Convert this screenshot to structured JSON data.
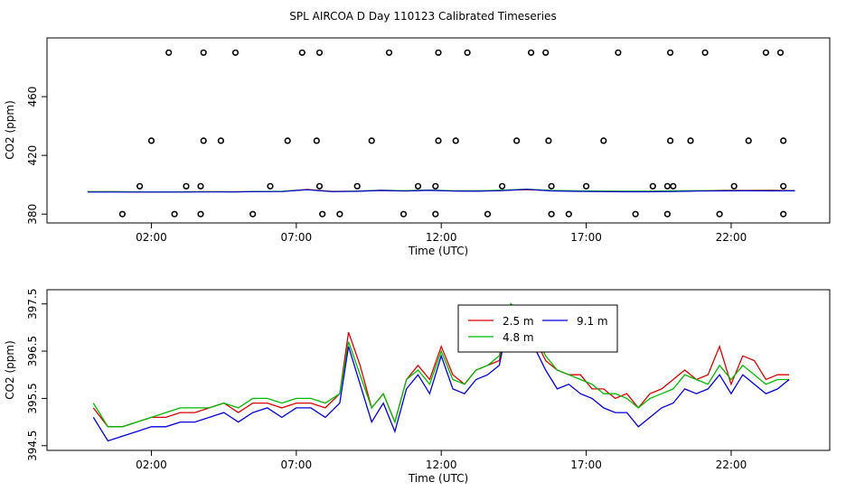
{
  "title": "SPL AIRCOA D  Day 110123  Calibrated Timeseries",
  "colors": {
    "red": "#dd0000",
    "green": "#00bb00",
    "blue": "#0000dd",
    "axis": "#000000",
    "background": "#ffffff"
  },
  "chart_data": [
    {
      "type": "scatter",
      "xlabel": "Time (UTC)",
      "ylabel": "CO2 (ppm)",
      "x_ticks": [
        "02:00",
        "07:00",
        "12:00",
        "17:00",
        "22:00"
      ],
      "x_tick_hours": [
        2,
        7,
        12,
        17,
        22
      ],
      "xlim_hours": [
        -1.6,
        25.4
      ],
      "y_ticks": [
        "380",
        "420",
        "460"
      ],
      "y_tick_values": [
        380,
        420,
        460
      ],
      "ylim": [
        374,
        500
      ],
      "markers": {
        "x": [
          1.0,
          1.6,
          2.0,
          2.6,
          2.8,
          3.2,
          3.7,
          3.7,
          3.8,
          3.8,
          4.4,
          4.9,
          5.5,
          6.1,
          6.7,
          7.2,
          7.7,
          7.8,
          7.8,
          7.9,
          8.5,
          9.1,
          9.6,
          10.2,
          10.7,
          11.2,
          11.8,
          11.8,
          11.9,
          11.9,
          12.5,
          12.9,
          13.6,
          14.1,
          14.6,
          15.1,
          15.6,
          15.7,
          15.8,
          15.8,
          16.4,
          17.0,
          17.6,
          18.1,
          18.7,
          19.3,
          19.8,
          19.8,
          19.9,
          19.9,
          20.0,
          20.6,
          21.1,
          21.6,
          22.1,
          22.6,
          23.2,
          23.7,
          23.8,
          23.8,
          23.8
        ],
        "y": [
          380,
          399,
          430,
          490,
          380,
          399,
          380,
          399,
          430,
          490,
          430,
          490,
          380,
          399,
          430,
          490,
          430,
          490,
          399,
          380,
          380,
          399,
          430,
          490,
          380,
          399,
          380,
          399,
          430,
          490,
          430,
          490,
          380,
          399,
          430,
          490,
          490,
          430,
          399,
          380,
          380,
          399,
          430,
          490,
          380,
          399,
          380,
          399,
          430,
          490,
          399,
          430,
          490,
          380,
          399,
          430,
          490,
          490,
          430,
          399,
          380
        ]
      },
      "series": [
        {
          "name": "2.5 m",
          "color": "#dd0000",
          "values": [
            395.2,
            395.3,
            395.1,
            395.1,
            395.2,
            395.3,
            395.2,
            395.4,
            395.5,
            396.8,
            395.5,
            395.6,
            396.2,
            396.0,
            396.3,
            395.8,
            395.8,
            396.1,
            396.6,
            396.0,
            395.7,
            395.6,
            395.5,
            395.5,
            395.8,
            395.9,
            396.2,
            396.1,
            396.3,
            396.0
          ]
        },
        {
          "name": "4.8 m",
          "color": "#00bb00",
          "values": [
            395.3,
            395.3,
            395.2,
            395.1,
            395.2,
            395.3,
            395.2,
            395.4,
            395.6,
            396.6,
            395.4,
            395.7,
            396.2,
            396.0,
            396.4,
            395.9,
            395.9,
            396.3,
            397.0,
            396.1,
            395.9,
            395.7,
            395.6,
            395.6,
            395.8,
            396.0,
            396.0,
            395.9,
            396.0,
            395.8
          ]
        },
        {
          "name": "9.1 m",
          "color": "#0000dd",
          "values": [
            395.0,
            395.0,
            395.0,
            395.0,
            395.0,
            395.1,
            395.1,
            395.3,
            395.4,
            396.6,
            395.3,
            395.5,
            396.1,
            395.7,
            396.2,
            395.7,
            395.6,
            396.0,
            396.9,
            395.8,
            395.5,
            395.3,
            395.2,
            395.2,
            395.4,
            395.7,
            395.8,
            395.9,
            395.8,
            395.9
          ]
        }
      ]
    },
    {
      "type": "line",
      "xlabel": "Time (UTC)",
      "ylabel": "CO2 (ppm)",
      "legend_position": "top-center",
      "x_ticks": [
        "02:00",
        "07:00",
        "12:00",
        "17:00",
        "22:00"
      ],
      "x_tick_hours": [
        2,
        7,
        12,
        17,
        22
      ],
      "xlim_hours": [
        -1.6,
        25.4
      ],
      "y_ticks": [
        "394.5",
        "395.5",
        "396.5",
        "397.5"
      ],
      "y_tick_values": [
        394.5,
        395.5,
        396.5,
        397.5
      ],
      "ylim": [
        394.4,
        397.8
      ],
      "series": [
        {
          "name": "2.5 m",
          "color": "#dd0000",
          "x": [
            0.0,
            0.5,
            1.0,
            1.5,
            2.0,
            2.5,
            3.0,
            3.5,
            4.0,
            4.5,
            5.0,
            5.5,
            6.0,
            6.5,
            7.0,
            7.5,
            8.0,
            8.5,
            8.8,
            9.2,
            9.6,
            10.0,
            10.4,
            10.8,
            11.2,
            11.6,
            12.0,
            12.4,
            12.8,
            13.2,
            13.6,
            14.0,
            14.4,
            14.8,
            15.2,
            15.6,
            16.0,
            16.4,
            16.8,
            17.2,
            17.6,
            18.0,
            18.4,
            18.8,
            19.2,
            19.6,
            20.0,
            20.4,
            20.8,
            21.2,
            21.6,
            22.0,
            22.4,
            22.8,
            23.2,
            23.6,
            24.0
          ],
          "y": [
            395.3,
            394.9,
            394.9,
            395.0,
            395.1,
            395.1,
            395.2,
            395.2,
            395.3,
            395.4,
            395.2,
            395.4,
            395.4,
            395.3,
            395.4,
            395.4,
            395.3,
            395.6,
            396.9,
            396.2,
            395.3,
            395.6,
            395.0,
            395.9,
            396.2,
            395.9,
            396.6,
            396.0,
            395.8,
            396.1,
            396.2,
            396.3,
            397.5,
            397.1,
            396.8,
            396.3,
            396.1,
            396.0,
            396.0,
            395.7,
            395.7,
            395.5,
            395.6,
            395.3,
            395.6,
            395.7,
            395.9,
            396.1,
            395.9,
            396.0,
            396.6,
            395.8,
            396.4,
            396.3,
            395.9,
            396.0,
            396.0
          ]
        },
        {
          "name": "4.8 m",
          "color": "#00bb00",
          "x": [
            0.0,
            0.5,
            1.0,
            1.5,
            2.0,
            2.5,
            3.0,
            3.5,
            4.0,
            4.5,
            5.0,
            5.5,
            6.0,
            6.5,
            7.0,
            7.5,
            8.0,
            8.5,
            8.8,
            9.2,
            9.6,
            10.0,
            10.4,
            10.8,
            11.2,
            11.6,
            12.0,
            12.4,
            12.8,
            13.2,
            13.6,
            14.0,
            14.4,
            14.8,
            15.2,
            15.6,
            16.0,
            16.4,
            16.8,
            17.2,
            17.6,
            18.0,
            18.4,
            18.8,
            19.2,
            19.6,
            20.0,
            20.4,
            20.8,
            21.2,
            21.6,
            22.0,
            22.4,
            22.8,
            23.2,
            23.6,
            24.0
          ],
          "y": [
            395.4,
            394.9,
            394.9,
            395.0,
            395.1,
            395.2,
            395.3,
            395.3,
            395.3,
            395.4,
            395.3,
            395.5,
            395.5,
            395.4,
            395.5,
            395.5,
            395.4,
            395.6,
            396.7,
            396.0,
            395.3,
            395.6,
            395.0,
            395.9,
            396.1,
            395.8,
            396.5,
            395.9,
            395.8,
            396.1,
            396.2,
            396.4,
            397.5,
            397.3,
            396.9,
            396.4,
            396.1,
            396.0,
            395.9,
            395.8,
            395.6,
            395.6,
            395.5,
            395.3,
            395.5,
            395.6,
            395.7,
            396.0,
            395.9,
            395.8,
            396.2,
            395.9,
            396.2,
            396.0,
            395.8,
            395.9,
            395.9
          ]
        },
        {
          "name": "9.1 m",
          "color": "#0000dd",
          "x": [
            0.0,
            0.5,
            1.0,
            1.5,
            2.0,
            2.5,
            3.0,
            3.5,
            4.0,
            4.5,
            5.0,
            5.5,
            6.0,
            6.5,
            7.0,
            7.5,
            8.0,
            8.5,
            8.8,
            9.2,
            9.6,
            10.0,
            10.4,
            10.8,
            11.2,
            11.6,
            12.0,
            12.4,
            12.8,
            13.2,
            13.6,
            14.0,
            14.4,
            14.8,
            15.2,
            15.6,
            16.0,
            16.4,
            16.8,
            17.2,
            17.6,
            18.0,
            18.4,
            18.8,
            19.2,
            19.6,
            20.0,
            20.4,
            20.8,
            21.2,
            21.6,
            22.0,
            22.4,
            22.8,
            23.2,
            23.6,
            24.0
          ],
          "y": [
            395.1,
            394.6,
            394.7,
            394.8,
            394.9,
            394.9,
            395.0,
            395.0,
            395.1,
            395.2,
            395.0,
            395.2,
            395.3,
            395.1,
            395.3,
            395.3,
            395.1,
            395.4,
            396.6,
            395.8,
            395.0,
            395.4,
            394.8,
            395.7,
            396.0,
            395.6,
            396.4,
            395.7,
            395.6,
            395.9,
            396.0,
            396.2,
            397.4,
            397.1,
            396.6,
            396.1,
            395.7,
            395.8,
            395.6,
            395.5,
            395.3,
            395.2,
            395.2,
            394.9,
            395.1,
            395.3,
            395.4,
            395.7,
            395.6,
            395.7,
            396.0,
            395.6,
            396.0,
            395.8,
            395.6,
            395.7,
            395.9
          ]
        }
      ]
    }
  ]
}
